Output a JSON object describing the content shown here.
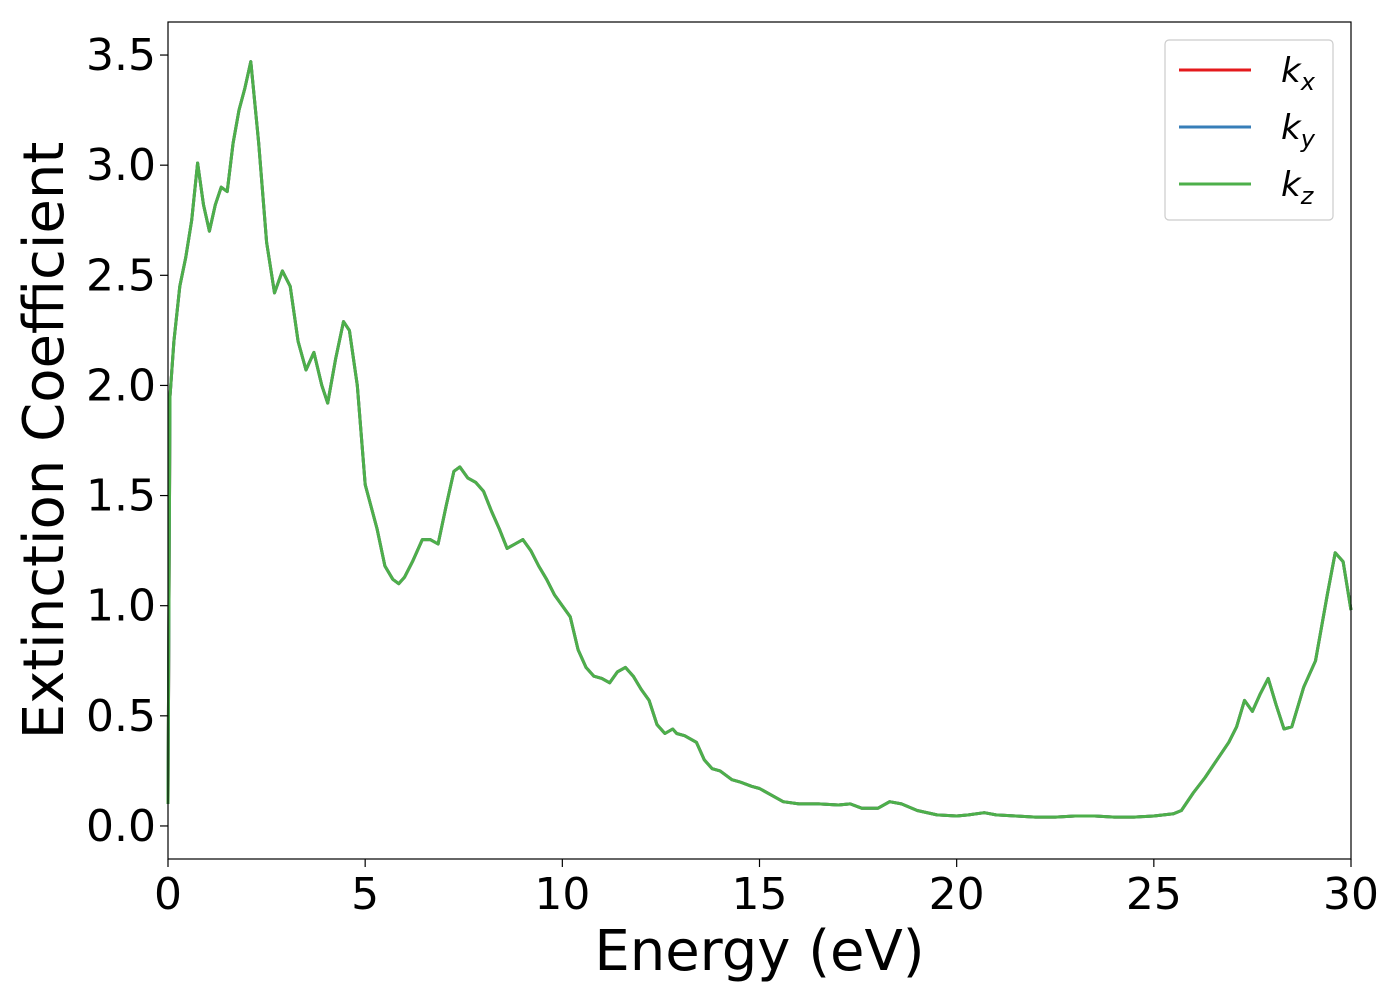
{
  "chart_data": {
    "type": "line",
    "xlabel": "Energy (eV)",
    "ylabel": "Extinction Coefficient",
    "xlim": [
      0,
      30
    ],
    "ylim": [
      -0.15,
      3.65
    ],
    "x_ticks": [
      0,
      5,
      10,
      15,
      20,
      25,
      30
    ],
    "x_tick_labels": [
      "0",
      "5",
      "10",
      "15",
      "20",
      "25",
      "30"
    ],
    "y_ticks": [
      0.0,
      0.5,
      1.0,
      1.5,
      2.0,
      2.5,
      3.0,
      3.5
    ],
    "y_tick_labels": [
      "0.0",
      "0.5",
      "1.0",
      "1.5",
      "2.0",
      "2.5",
      "3.0",
      "3.5"
    ],
    "grid": false,
    "legend_position": "top-right",
    "x": [
      0,
      0.05,
      0.15,
      0.3,
      0.45,
      0.6,
      0.75,
      0.9,
      1.05,
      1.2,
      1.35,
      1.5,
      1.65,
      1.8,
      1.95,
      2.1,
      2.3,
      2.5,
      2.7,
      2.9,
      3.1,
      3.3,
      3.5,
      3.7,
      3.9,
      4.05,
      4.25,
      4.45,
      4.6,
      4.8,
      5.0,
      5.3,
      5.5,
      5.7,
      5.85,
      6.0,
      6.2,
      6.45,
      6.65,
      6.85,
      7.05,
      7.25,
      7.4,
      7.6,
      7.8,
      8.0,
      8.2,
      8.4,
      8.6,
      8.8,
      9.0,
      9.2,
      9.4,
      9.6,
      9.8,
      10.0,
      10.2,
      10.4,
      10.6,
      10.8,
      11.0,
      11.2,
      11.4,
      11.6,
      11.8,
      12.0,
      12.2,
      12.4,
      12.6,
      12.8,
      12.9,
      13.1,
      13.4,
      13.6,
      13.8,
      14.0,
      14.3,
      14.5,
      14.8,
      15.0,
      15.3,
      15.6,
      16.0,
      16.5,
      17.0,
      17.3,
      17.6,
      18.0,
      18.3,
      18.6,
      19.0,
      19.5,
      20.0,
      20.3,
      20.7,
      21.0,
      21.5,
      22.0,
      22.5,
      23.0,
      23.5,
      24.0,
      24.5,
      25.0,
      25.5,
      25.7,
      26.0,
      26.3,
      26.6,
      26.9,
      27.1,
      27.3,
      27.5,
      27.7,
      27.9,
      28.1,
      28.3,
      28.5,
      28.8,
      29.1,
      29.4,
      29.6,
      29.8,
      30.0
    ],
    "series": [
      {
        "name": "k_x",
        "color": "#e41a1c",
        "values": [
          0.1,
          1.95,
          2.2,
          2.45,
          2.58,
          2.75,
          3.01,
          2.82,
          2.7,
          2.82,
          2.9,
          2.88,
          3.1,
          3.25,
          3.35,
          3.47,
          3.1,
          2.65,
          2.42,
          2.52,
          2.45,
          2.2,
          2.07,
          2.15,
          2.0,
          1.92,
          2.12,
          2.29,
          2.25,
          2.0,
          1.55,
          1.35,
          1.18,
          1.12,
          1.1,
          1.13,
          1.2,
          1.3,
          1.3,
          1.28,
          1.45,
          1.61,
          1.63,
          1.58,
          1.56,
          1.52,
          1.43,
          1.35,
          1.26,
          1.28,
          1.3,
          1.25,
          1.18,
          1.12,
          1.05,
          1.0,
          0.95,
          0.8,
          0.72,
          0.68,
          0.67,
          0.65,
          0.7,
          0.72,
          0.68,
          0.62,
          0.57,
          0.46,
          0.42,
          0.44,
          0.42,
          0.41,
          0.38,
          0.3,
          0.26,
          0.25,
          0.21,
          0.2,
          0.18,
          0.17,
          0.14,
          0.11,
          0.1,
          0.1,
          0.095,
          0.1,
          0.08,
          0.08,
          0.11,
          0.1,
          0.07,
          0.05,
          0.045,
          0.05,
          0.06,
          0.05,
          0.045,
          0.04,
          0.04,
          0.045,
          0.045,
          0.04,
          0.04,
          0.045,
          0.055,
          0.07,
          0.15,
          0.22,
          0.3,
          0.38,
          0.45,
          0.57,
          0.52,
          0.6,
          0.67,
          0.55,
          0.44,
          0.45,
          0.63,
          0.75,
          1.05,
          1.24,
          1.2,
          0.98
        ]
      },
      {
        "name": "k_y",
        "color": "#377eb8",
        "values": [
          0.1,
          1.95,
          2.2,
          2.45,
          2.58,
          2.75,
          3.01,
          2.82,
          2.7,
          2.82,
          2.9,
          2.88,
          3.1,
          3.25,
          3.35,
          3.47,
          3.1,
          2.65,
          2.42,
          2.52,
          2.45,
          2.2,
          2.07,
          2.15,
          2.0,
          1.92,
          2.12,
          2.29,
          2.25,
          2.0,
          1.55,
          1.35,
          1.18,
          1.12,
          1.1,
          1.13,
          1.2,
          1.3,
          1.3,
          1.28,
          1.45,
          1.61,
          1.63,
          1.58,
          1.56,
          1.52,
          1.43,
          1.35,
          1.26,
          1.28,
          1.3,
          1.25,
          1.18,
          1.12,
          1.05,
          1.0,
          0.95,
          0.8,
          0.72,
          0.68,
          0.67,
          0.65,
          0.7,
          0.72,
          0.68,
          0.62,
          0.57,
          0.46,
          0.42,
          0.44,
          0.42,
          0.41,
          0.38,
          0.3,
          0.26,
          0.25,
          0.21,
          0.2,
          0.18,
          0.17,
          0.14,
          0.11,
          0.1,
          0.1,
          0.095,
          0.1,
          0.08,
          0.08,
          0.11,
          0.1,
          0.07,
          0.05,
          0.045,
          0.05,
          0.06,
          0.05,
          0.045,
          0.04,
          0.04,
          0.045,
          0.045,
          0.04,
          0.04,
          0.045,
          0.055,
          0.07,
          0.15,
          0.22,
          0.3,
          0.38,
          0.45,
          0.57,
          0.52,
          0.6,
          0.67,
          0.55,
          0.44,
          0.45,
          0.63,
          0.75,
          1.05,
          1.24,
          1.2,
          0.98
        ]
      },
      {
        "name": "k_z",
        "color": "#4daf4a",
        "values": [
          0.1,
          1.95,
          2.2,
          2.45,
          2.58,
          2.75,
          3.01,
          2.82,
          2.7,
          2.82,
          2.9,
          2.88,
          3.1,
          3.25,
          3.35,
          3.47,
          3.1,
          2.65,
          2.42,
          2.52,
          2.45,
          2.2,
          2.07,
          2.15,
          2.0,
          1.92,
          2.12,
          2.29,
          2.25,
          2.0,
          1.55,
          1.35,
          1.18,
          1.12,
          1.1,
          1.13,
          1.2,
          1.3,
          1.3,
          1.28,
          1.45,
          1.61,
          1.63,
          1.58,
          1.56,
          1.52,
          1.43,
          1.35,
          1.26,
          1.28,
          1.3,
          1.25,
          1.18,
          1.12,
          1.05,
          1.0,
          0.95,
          0.8,
          0.72,
          0.68,
          0.67,
          0.65,
          0.7,
          0.72,
          0.68,
          0.62,
          0.57,
          0.46,
          0.42,
          0.44,
          0.42,
          0.41,
          0.38,
          0.3,
          0.26,
          0.25,
          0.21,
          0.2,
          0.18,
          0.17,
          0.14,
          0.11,
          0.1,
          0.1,
          0.095,
          0.1,
          0.08,
          0.08,
          0.11,
          0.1,
          0.07,
          0.05,
          0.045,
          0.05,
          0.06,
          0.05,
          0.045,
          0.04,
          0.04,
          0.045,
          0.045,
          0.04,
          0.04,
          0.045,
          0.055,
          0.07,
          0.15,
          0.22,
          0.3,
          0.38,
          0.45,
          0.57,
          0.52,
          0.6,
          0.67,
          0.55,
          0.44,
          0.45,
          0.63,
          0.75,
          1.05,
          1.24,
          1.2,
          0.98
        ]
      }
    ],
    "legend": [
      {
        "base": "k",
        "sub": "x",
        "color": "#e41a1c"
      },
      {
        "base": "k",
        "sub": "y",
        "color": "#377eb8"
      },
      {
        "base": "k",
        "sub": "z",
        "color": "#4daf4a"
      }
    ]
  }
}
